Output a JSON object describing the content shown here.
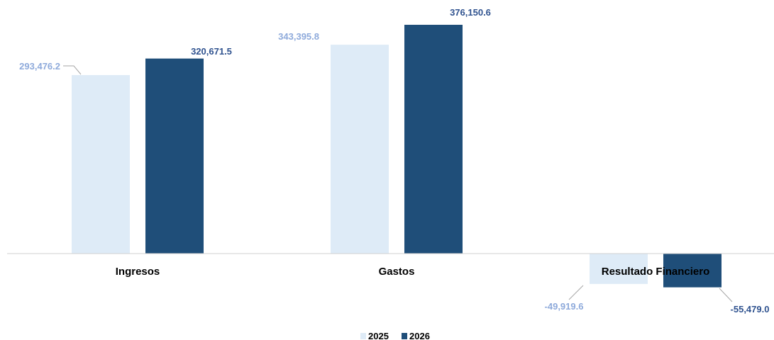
{
  "chart_data": {
    "type": "bar",
    "title": "",
    "xlabel": "",
    "ylabel": "",
    "categories": [
      "Ingresos",
      "Gastos",
      "Resultado Financiero"
    ],
    "series": [
      {
        "name": "2025",
        "values": [
          293476.2,
          343395.8,
          -49919.6
        ],
        "labels": [
          "293,476.2",
          "343,395.8",
          "-49,919.6"
        ],
        "color": "#deebf7"
      },
      {
        "name": "2026",
        "values": [
          320671.5,
          376150.6,
          -55479.0
        ],
        "labels": [
          "320,671.5",
          "376,150.6",
          "-55,479.0"
        ],
        "color": "#1f4e79"
      }
    ],
    "label_colors": {
      "2025": "#8eaadb",
      "2026": "#2f528f"
    },
    "ylim": [
      -80000,
      400000
    ],
    "grid": false,
    "legend_position": "bottom"
  }
}
